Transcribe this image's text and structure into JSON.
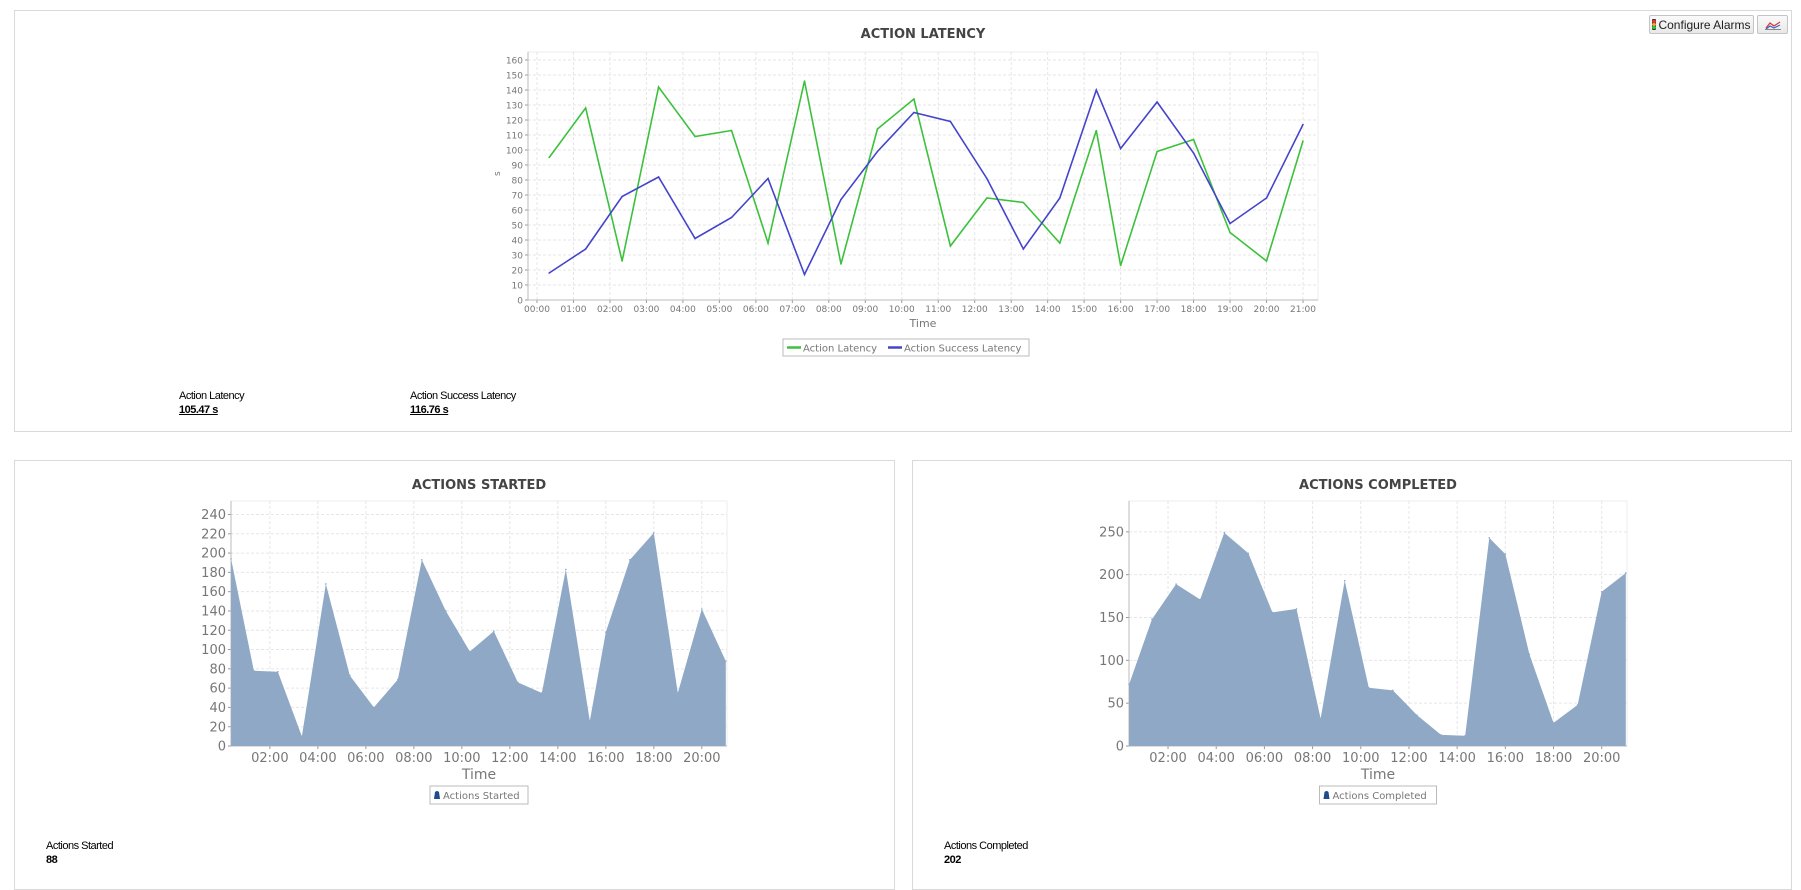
{
  "toolbar": {
    "configure_alarms": "Configure Alarms",
    "traffic-light-icon": "traffic-light-icon",
    "chart-icon": "line-chart-icon"
  },
  "latency": {
    "stats": [
      {
        "label": "Action Latency",
        "value": "105.47 s"
      },
      {
        "label": "Action Success Latency",
        "value": "116.76 s"
      }
    ]
  },
  "started": {
    "stats": [
      {
        "label": "Actions Started",
        "value": "88"
      }
    ]
  },
  "completed": {
    "stats": [
      {
        "label": "Actions Completed",
        "value": "202"
      }
    ]
  },
  "chart_data": [
    {
      "type": "line",
      "title": "ACTION LATENCY",
      "xlabel": "Time",
      "ylabel": "s",
      "ylim": [
        0,
        160
      ],
      "yticks": [
        0,
        10,
        20,
        30,
        40,
        50,
        60,
        70,
        80,
        90,
        100,
        110,
        120,
        130,
        140,
        150,
        160
      ],
      "xticks": [
        "00:00",
        "01:00",
        "02:00",
        "03:00",
        "04:00",
        "05:00",
        "06:00",
        "07:00",
        "08:00",
        "09:00",
        "10:00",
        "11:00",
        "12:00",
        "13:00",
        "14:00",
        "15:00",
        "16:00",
        "17:00",
        "18:00",
        "19:00",
        "20:00",
        "21:00"
      ],
      "x": [
        "00:20",
        "01:20",
        "02:20",
        "03:20",
        "04:20",
        "05:20",
        "06:20",
        "07:20",
        "08:20",
        "09:20",
        "10:20",
        "11:20",
        "12:20",
        "13:20",
        "14:20",
        "15:20",
        "16:00",
        "17:00",
        "18:00",
        "19:00",
        "20:00",
        "21:00"
      ],
      "grid": true,
      "legend": "bottom",
      "series": [
        {
          "name": "Action Latency",
          "color": "#3cc13c",
          "values": [
            95,
            128,
            26,
            142,
            109,
            113,
            38,
            146,
            24,
            114,
            134,
            36,
            68,
            65,
            38,
            113,
            23,
            99,
            107,
            45,
            26,
            106
          ]
        },
        {
          "name": "Action Success Latency",
          "color": "#4444cc",
          "values": [
            18,
            34,
            69,
            82,
            41,
            55,
            81,
            17,
            67,
            99,
            125,
            119,
            81,
            34,
            68,
            140,
            101,
            132,
            98,
            51,
            68,
            117
          ]
        }
      ]
    },
    {
      "type": "area",
      "title": "ACTIONS STARTED",
      "xlabel": "Time",
      "ylabel": "",
      "ylim": [
        0,
        254
      ],
      "yticks": [
        0,
        20,
        40,
        60,
        80,
        100,
        120,
        140,
        160,
        180,
        200,
        220,
        240
      ],
      "xticks": [
        "02:00",
        "04:00",
        "06:00",
        "08:00",
        "10:00",
        "12:00",
        "14:00",
        "16:00",
        "18:00",
        "20:00"
      ],
      "x": [
        "00:23",
        "01:20",
        "02:20",
        "03:20",
        "04:20",
        "05:20",
        "06:20",
        "07:20",
        "08:20",
        "09:20",
        "10:20",
        "11:20",
        "12:20",
        "13:20",
        "14:20",
        "15:20",
        "16:00",
        "17:00",
        "18:00",
        "19:00",
        "20:00",
        "21:00"
      ],
      "grid": true,
      "legend": "bottom",
      "series": [
        {
          "name": "Actions Started",
          "color": "#8ea8c6",
          "values": [
            194,
            78,
            77,
            10,
            168,
            73,
            40,
            69,
            193,
            140,
            98,
            119,
            66,
            55,
            183,
            26,
            118,
            193,
            221,
            55,
            142,
            88
          ]
        }
      ]
    },
    {
      "type": "area",
      "title": "ACTIONS COMPLETED",
      "xlabel": "Time",
      "ylabel": "",
      "ylim": [
        0,
        286
      ],
      "yticks": [
        0,
        50,
        100,
        150,
        200,
        250
      ],
      "xticks": [
        "02:00",
        "04:00",
        "06:00",
        "08:00",
        "10:00",
        "12:00",
        "14:00",
        "16:00",
        "18:00",
        "20:00"
      ],
      "x": [
        "00:23",
        "01:20",
        "02:20",
        "03:20",
        "04:20",
        "05:20",
        "06:20",
        "07:20",
        "08:20",
        "09:20",
        "10:20",
        "11:20",
        "12:20",
        "13:20",
        "14:20",
        "15:20",
        "16:00",
        "17:00",
        "18:00",
        "19:00",
        "20:00",
        "21:00"
      ],
      "grid": true,
      "legend": "bottom",
      "series": [
        {
          "name": "Actions Completed",
          "color": "#8ea8c6",
          "values": [
            72,
            148,
            189,
            171,
            249,
            225,
            156,
            160,
            32,
            193,
            68,
            65,
            36,
            13,
            12,
            243,
            224,
            107,
            27,
            48,
            180,
            202
          ]
        }
      ]
    }
  ]
}
